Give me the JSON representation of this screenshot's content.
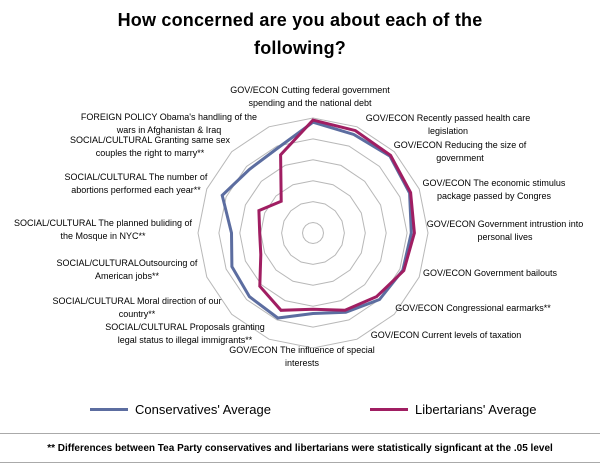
{
  "chart_data": {
    "type": "radar",
    "title": "How concerned are you about each of the following?",
    "scale": {
      "min": 0,
      "max": 5.5,
      "rings": [
        0.5,
        1.5,
        2.5,
        3.5,
        4.5,
        5.5
      ]
    },
    "grid_color": "#b8b8b8",
    "legend_position": "bottom",
    "categories": [
      "GOV/ECON Cutting federal government\nspending and the national debt",
      "GOV/ECON Recently passed health care\nlegislation",
      "GOV/ECON Reducing the size of\ngovernment",
      "GOV/ECON The economic stimulus\npackage passed by Congres",
      "GOV/ECON Government intrustion into\npersonal lives",
      "GOV/ECON Government bailouts",
      "GOV/ECON Congressional earmarks**",
      "GOV/ECON Current levels of taxation",
      "GOV/ECON The influence of special\ninterests",
      "SOCIAL/CULTURAL Proposals granting\nlegal status to illegal immigrants**",
      "SOCIAL/CULTURAL Moral direction of our\ncountry**",
      "SOCIAL/CULTURALOutsourcing of\nAmerican jobs**",
      "SOCIAL/CULTURAL The planned buliding of\nthe Mosque in NYC**",
      "SOCIAL/CULTURAL The number of\nabortions performed each year**",
      "SOCIAL/CULTURAL Granting same sex\ncouples the right to marry**",
      "FOREIGN POLICY Obama's handling of the\nwars in Afghanistan & Iraq"
    ],
    "series": [
      {
        "name": "Conservatives' Average",
        "color": "#5C6DA0",
        "values": [
          5.3,
          5.1,
          5.2,
          5.0,
          4.7,
          4.65,
          4.5,
          4.1,
          3.85,
          4.4,
          4.3,
          4.2,
          3.9,
          4.7,
          4.3,
          4.4
        ]
      },
      {
        "name": "Libertarians' Average",
        "color": "#A01E62",
        "values": [
          5.4,
          5.3,
          5.25,
          5.05,
          4.85,
          4.7,
          4.3,
          4.0,
          3.65,
          4.0,
          3.6,
          2.7,
          2.55,
          2.8,
          2.15,
          4.05
        ]
      }
    ],
    "footnote": "** Differences between Tea Party conservatives and libertarians were statistically signficant at the .05 level"
  }
}
